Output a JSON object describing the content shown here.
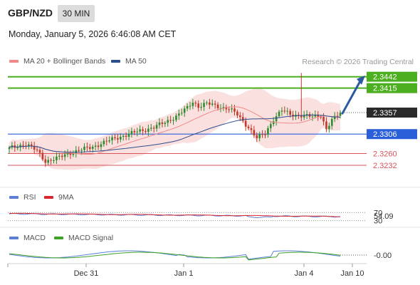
{
  "header": {
    "symbol": "GBP/NZD",
    "interval": "30 MIN",
    "datetime": "Monday, January 5, 2026 6:46:08 AM CET",
    "research": "Research © 2026 Trading Central"
  },
  "legends": {
    "price": [
      {
        "label": "MA 20 + Bollinger Bands",
        "color": "#f08a8a"
      },
      {
        "label": "MA 50",
        "color": "#2b4f8c"
      }
    ],
    "rsi": [
      {
        "label": "RSI",
        "color": "#5b7fd6"
      },
      {
        "label": "9MA",
        "color": "#d9272e"
      }
    ],
    "macd": [
      {
        "label": "MACD",
        "color": "#5b7fd6"
      },
      {
        "label": "MACD Signal",
        "color": "#3fa127"
      }
    ]
  },
  "colors": {
    "bull": "#2e8b2e",
    "bear": "#c0392b",
    "bollinger": "#f7c7c7",
    "resistance": "#4caf1f",
    "pivot": "#2b5fd9",
    "support": "#d9535b",
    "arrow": "#2c5aa0",
    "last": "#2a2a2a"
  },
  "chart_data": [
    {
      "type": "candlestick",
      "title": "GBP/NZD",
      "x_ticks": [
        "Dec 31",
        "Jan 1",
        "Jan 4",
        "Jan 10"
      ],
      "ylim": [
        2.3205,
        2.3455
      ],
      "y_ticks": [
        2.3442,
        2.3415,
        2.3357,
        2.3306,
        2.326,
        2.3232
      ],
      "levels": [
        {
          "value": 2.3442,
          "kind": "resistance"
        },
        {
          "value": 2.3415,
          "kind": "resistance"
        },
        {
          "value": 2.3306,
          "kind": "pivot"
        },
        {
          "value": 2.326,
          "kind": "support"
        },
        {
          "value": 2.3232,
          "kind": "support"
        }
      ],
      "last_price": 2.3357,
      "forecast_arrow": {
        "from": 2.3355,
        "to": 2.344
      },
      "series": [
        {
          "name": "MA 20 + Bollinger Bands"
        },
        {
          "name": "MA 50"
        }
      ]
    },
    {
      "type": "line",
      "title": "RSI",
      "ylim": [
        0,
        100
      ],
      "y_ticks": [
        70,
        54.09,
        30
      ],
      "last_value": 54.09,
      "series": [
        {
          "name": "RSI"
        },
        {
          "name": "9MA"
        }
      ]
    },
    {
      "type": "line",
      "title": "MACD",
      "y_ticks": [
        -0.0
      ],
      "last_value": "-0.00",
      "series": [
        {
          "name": "MACD"
        },
        {
          "name": "MACD Signal"
        }
      ]
    }
  ]
}
